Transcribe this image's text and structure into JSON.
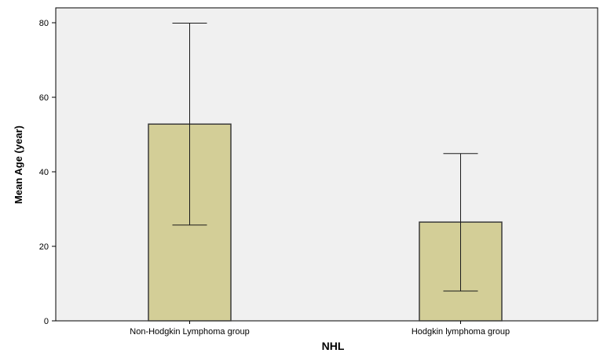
{
  "chart_data": {
    "type": "bar",
    "categories": [
      "Non-Hodgkin Lymphoma group",
      "Hodgkin lymphoma group"
    ],
    "values": [
      52.8,
      26.5
    ],
    "error_low": [
      25.7,
      8.0
    ],
    "error_high": [
      79.9,
      44.9
    ],
    "xlabel": "NHL",
    "ylabel": "Mean Age (year)",
    "ylim": [
      0,
      84
    ],
    "yticks": [
      0,
      20,
      40,
      60,
      80
    ],
    "grid": false,
    "colors": {
      "plot_background": "#f0f0f0",
      "bar_fill": "#d3ce97",
      "bar_stroke": "#3a3a3a",
      "error_bar": "#1a1a1a",
      "axis": "#000000"
    }
  }
}
